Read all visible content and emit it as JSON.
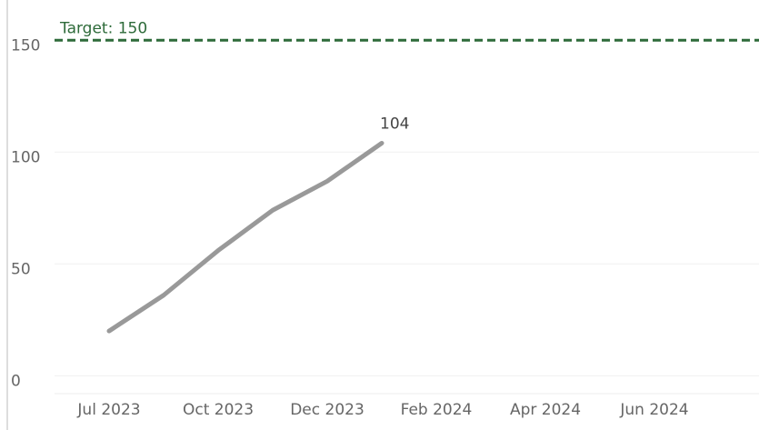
{
  "chart_data": {
    "type": "line",
    "categories": [
      "Jul 2023",
      null,
      "Oct 2023",
      null,
      "Dec 2023",
      null,
      "Feb 2024",
      null,
      "Apr 2024",
      null,
      "Jun 2024",
      null
    ],
    "series": [
      {
        "color": "#999999",
        "values": [
          20,
          36,
          56,
          74,
          87,
          104,
          null,
          null,
          null,
          null,
          null,
          null
        ]
      }
    ],
    "value_labels": [
      {
        "index": 5,
        "label": "104"
      }
    ],
    "ylim": [
      -8,
      168
    ],
    "yticks": [
      0,
      50,
      100,
      150
    ],
    "grid": true,
    "target": {
      "value": 150,
      "label": "Target: 150",
      "color": "#2e6b3a"
    }
  }
}
